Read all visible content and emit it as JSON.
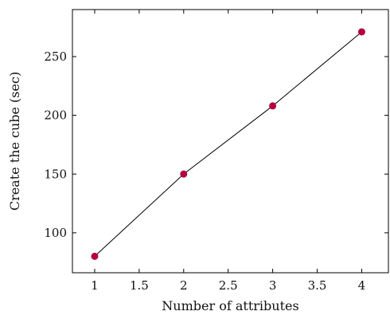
{
  "chart_data": {
    "type": "line",
    "xlabel": "Number of attributes",
    "ylabel": "Create the cube (sec)",
    "x": [
      1,
      2,
      3,
      4
    ],
    "series": [
      {
        "values": [
          80,
          150,
          208,
          271
        ],
        "line_color": "#000000",
        "marker_color": "#b5003e"
      }
    ],
    "xlim": [
      0.75,
      4.3
    ],
    "ylim": [
      66,
      290
    ],
    "x_ticks": [
      1,
      1.5,
      2,
      2.5,
      3,
      3.5,
      4
    ],
    "x_tick_labels": [
      "1",
      "1.5",
      "2",
      "2.5",
      "3",
      "3.5",
      "4"
    ],
    "y_ticks": [
      100,
      150,
      200,
      250
    ],
    "y_tick_labels": [
      "100",
      "150",
      "200",
      "250"
    ],
    "grid": false,
    "legend": "none"
  }
}
